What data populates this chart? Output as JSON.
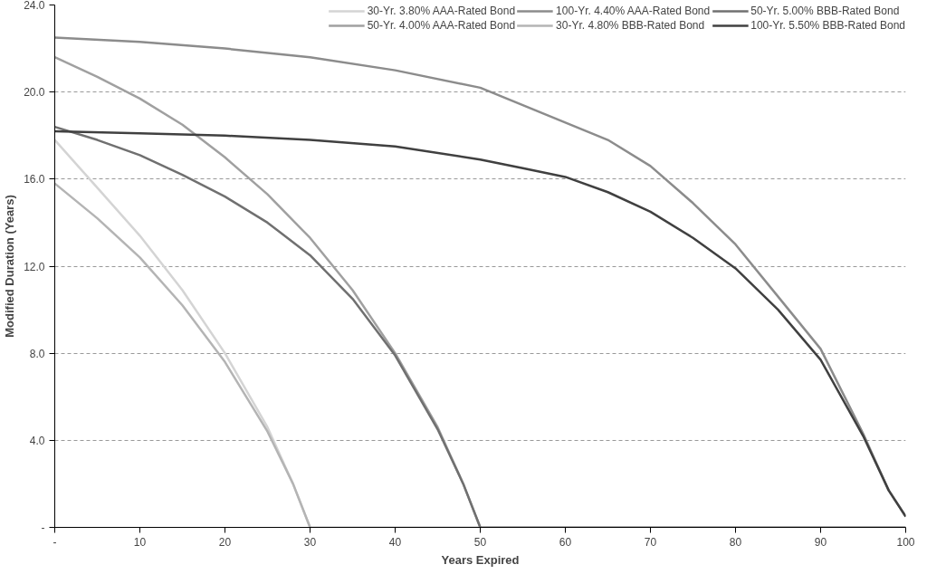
{
  "chart_data": {
    "type": "line",
    "xlabel": "Years Expired",
    "ylabel": "Modified Duration (Years)",
    "xlim": [
      0,
      100
    ],
    "xticks": [
      {
        "value": 0,
        "label": "-"
      },
      10,
      20,
      30,
      40,
      50,
      60,
      70,
      80,
      90,
      100
    ],
    "ylim": [
      0,
      24
    ],
    "yticks": [
      {
        "value": 0,
        "label": "-"
      },
      {
        "value": 4,
        "label": "4.0"
      },
      {
        "value": 8,
        "label": "8.0"
      },
      {
        "value": 12,
        "label": "12.0"
      },
      {
        "value": 16,
        "label": "16.0"
      },
      {
        "value": 20,
        "label": "20.0"
      },
      {
        "value": 24,
        "label": "24.0"
      }
    ],
    "grid": "y",
    "legend": "top",
    "marker": "none",
    "line_style": "solid",
    "series": [
      {
        "name": "30-Yr. 3.80% AAA-Rated Bond",
        "color": "#d4d4d4",
        "x": [
          0,
          5,
          10,
          15,
          20,
          25,
          28,
          30,
          40,
          50,
          60,
          70,
          80,
          90,
          100
        ],
        "values": [
          17.8,
          15.6,
          13.4,
          10.9,
          8.0,
          4.6,
          2.0,
          0,
          0,
          0,
          0,
          0,
          0,
          0,
          0
        ]
      },
      {
        "name": "50-Yr. 4.00% AAA-Rated Bond",
        "color": "#a0a0a0",
        "x": [
          0,
          5,
          10,
          15,
          20,
          25,
          30,
          35,
          40,
          45,
          48,
          50,
          60,
          70,
          80,
          90,
          100
        ],
        "values": [
          21.6,
          20.7,
          19.7,
          18.5,
          17.0,
          15.3,
          13.3,
          10.9,
          8.0,
          4.6,
          2.0,
          0,
          0,
          0,
          0,
          0,
          0
        ]
      },
      {
        "name": "100-Yr. 4.40% AAA-Rated Bond",
        "color": "#8c8c8c",
        "x": [
          0,
          10,
          20,
          30,
          40,
          50,
          55,
          60,
          65,
          70,
          75,
          80,
          85,
          90,
          95,
          98,
          100
        ],
        "values": [
          22.5,
          22.3,
          22.0,
          21.6,
          21.0,
          20.2,
          19.4,
          18.6,
          17.8,
          16.6,
          14.9,
          13.0,
          10.6,
          8.2,
          4.3,
          1.7,
          0.5
        ]
      },
      {
        "name": "30-Yr. 4.80% BBB-Rated Bond",
        "color": "#b4b4b4",
        "x": [
          0,
          5,
          10,
          15,
          20,
          25,
          28,
          30
        ],
        "values": [
          15.8,
          14.2,
          12.4,
          10.2,
          7.6,
          4.4,
          2.0,
          0
        ]
      },
      {
        "name": "50-Yr. 5.00% BBB-Rated Bond",
        "color": "#707070",
        "x": [
          0,
          5,
          10,
          15,
          20,
          25,
          30,
          35,
          40,
          45,
          48,
          50
        ],
        "values": [
          18.4,
          17.8,
          17.1,
          16.2,
          15.2,
          14.0,
          12.5,
          10.5,
          7.9,
          4.5,
          2.0,
          0
        ]
      },
      {
        "name": "100-Yr. 5.50% BBB-Rated Bond",
        "color": "#404040",
        "x": [
          0,
          10,
          20,
          30,
          40,
          50,
          55,
          60,
          65,
          70,
          75,
          80,
          85,
          90,
          95,
          98,
          100
        ],
        "values": [
          18.2,
          18.1,
          18.0,
          17.8,
          17.5,
          16.9,
          16.5,
          16.1,
          15.4,
          14.5,
          13.3,
          11.9,
          10.0,
          7.7,
          4.2,
          1.7,
          0.5
        ]
      }
    ]
  }
}
